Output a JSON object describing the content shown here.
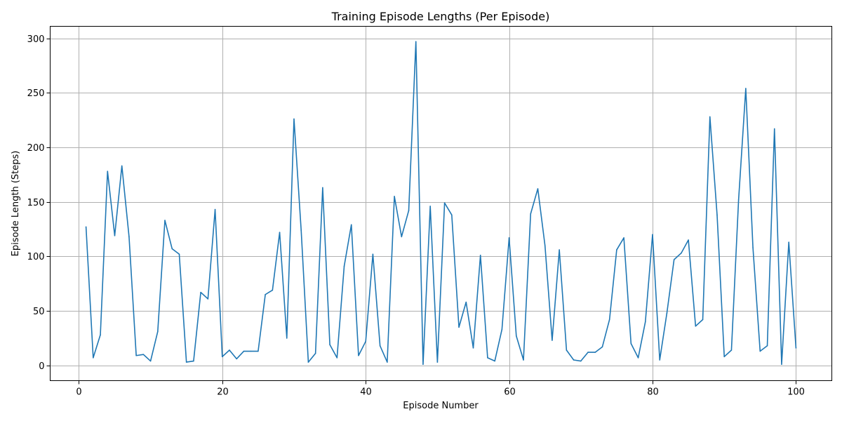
{
  "chart_data": {
    "type": "line",
    "title": "Training Episode Lengths (Per Episode)",
    "xlabel": "Episode Number",
    "ylabel": "Episode Length (Steps)",
    "xlim": [
      -4,
      105
    ],
    "ylim": [
      -14,
      311
    ],
    "xticks": [
      0,
      20,
      40,
      60,
      80,
      100
    ],
    "yticks": [
      0,
      50,
      100,
      150,
      200,
      250,
      300
    ],
    "grid": true,
    "line_color": "#1f77b4",
    "series": [
      {
        "x": [
          1,
          2,
          3,
          4,
          5,
          6,
          7,
          8,
          9,
          10,
          11,
          12,
          13,
          14,
          15,
          16,
          17,
          18,
          19,
          20,
          21,
          22,
          23,
          24,
          25,
          26,
          27,
          28,
          29,
          30,
          31,
          32,
          33,
          34,
          35,
          36,
          37,
          38,
          39,
          40,
          41,
          42,
          43,
          44,
          45,
          46,
          47,
          48,
          49,
          50,
          51,
          52,
          53,
          54,
          55,
          56,
          57,
          58,
          59,
          60,
          61,
          62,
          63,
          64,
          65,
          66,
          67,
          68,
          69,
          70,
          71,
          72,
          73,
          74,
          75,
          76,
          77,
          78,
          79,
          80,
          81,
          82,
          83,
          84,
          85,
          86,
          87,
          88,
          89,
          90,
          91,
          92,
          93,
          94,
          95,
          96,
          97,
          98,
          99,
          100
        ],
        "values": [
          127,
          7,
          28,
          178,
          119,
          183,
          118,
          9,
          10,
          4,
          31,
          133,
          107,
          102,
          3,
          4,
          67,
          61,
          143,
          8,
          14,
          6,
          13,
          13,
          13,
          65,
          69,
          122,
          25,
          226,
          124,
          3,
          11,
          163,
          19,
          7,
          91,
          129,
          9,
          22,
          102,
          18,
          3,
          155,
          118,
          142,
          297,
          1,
          146,
          3,
          149,
          138,
          35,
          58,
          16,
          101,
          7,
          4,
          33,
          117,
          27,
          5,
          139,
          162,
          110,
          23,
          106,
          14,
          5,
          4,
          12,
          12,
          17,
          42,
          106,
          117,
          20,
          7,
          40,
          120,
          5,
          48,
          97,
          103,
          115,
          36,
          42,
          228,
          138,
          8,
          14,
          152,
          254,
          108,
          13,
          18,
          217,
          1,
          113,
          16
        ]
      }
    ]
  }
}
